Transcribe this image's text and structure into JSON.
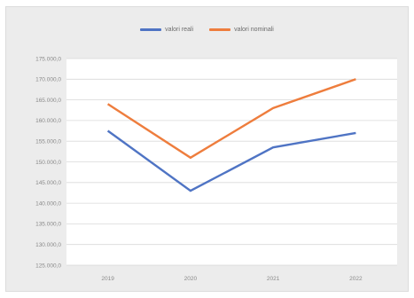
{
  "chart_data": {
    "type": "line",
    "title": "",
    "xlabel": "",
    "ylabel": "",
    "categories": [
      "2019",
      "2020",
      "2021",
      "2022"
    ],
    "ylim": [
      125000,
      175000
    ],
    "yticks": [
      125000,
      130000,
      135000,
      140000,
      145000,
      150000,
      155000,
      160000,
      165000,
      170000,
      175000
    ],
    "ytick_labels": [
      "125.000,0",
      "130.000,0",
      "135.000,0",
      "140.000,0",
      "145.000,0",
      "150.000,0",
      "155.000,0",
      "160.000,0",
      "165.000,0",
      "170.000,0",
      "175.000,0"
    ],
    "grid": true,
    "legend_position": "top-center",
    "series": [
      {
        "name": "valori reali",
        "color": "#4f74c4",
        "values": [
          157500,
          143000,
          153500,
          157000
        ]
      },
      {
        "name": "valori nominali",
        "color": "#ee7d3d",
        "values": [
          164000,
          151000,
          163000,
          170000
        ]
      }
    ]
  }
}
